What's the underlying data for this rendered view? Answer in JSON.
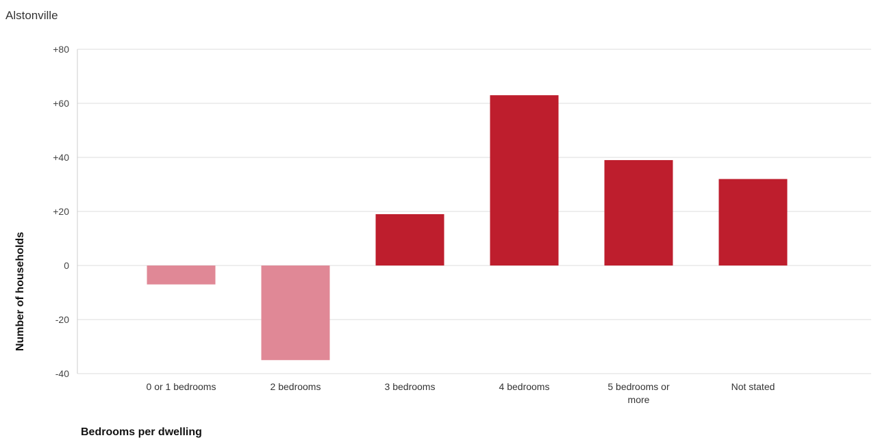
{
  "chart_data": {
    "type": "bar",
    "title": "Alstonville",
    "xlabel": "Bedrooms per dwelling",
    "ylabel": "Number of households",
    "categories": [
      "0 or 1 bedrooms",
      "2 bedrooms",
      "3 bedrooms",
      "4 bedrooms",
      "5 bedrooms or more",
      "Not stated"
    ],
    "category_lines": [
      [
        "0 or 1 bedrooms"
      ],
      [
        "2 bedrooms"
      ],
      [
        "3 bedrooms"
      ],
      [
        "4 bedrooms"
      ],
      [
        "5 bedrooms or",
        "more"
      ],
      [
        "Not stated"
      ]
    ],
    "values": [
      -7,
      -35,
      19,
      63,
      39,
      32
    ],
    "ylim": [
      -40,
      80
    ],
    "yticks": [
      -40,
      -20,
      0,
      20,
      40,
      60,
      80
    ],
    "ytick_labels": [
      "-40",
      "-20",
      "0",
      "+20",
      "+40",
      "+60",
      "+80"
    ],
    "grid": true,
    "colors": {
      "positive": "#be1e2d",
      "negative": "#e08896"
    }
  }
}
